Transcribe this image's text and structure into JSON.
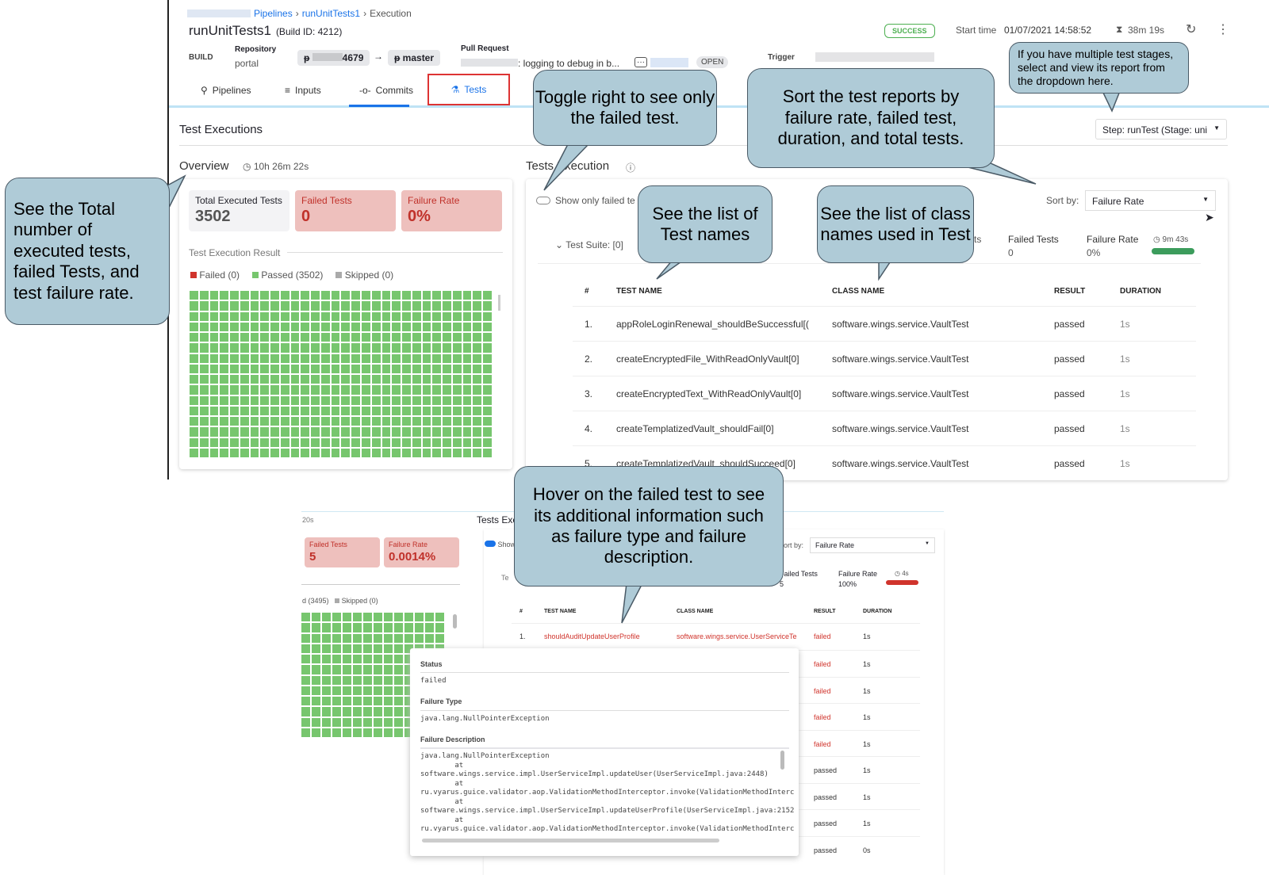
{
  "breadcrumb": {
    "items": [
      "Pipelines",
      "runUnitTests1",
      "Execution"
    ]
  },
  "header": {
    "title": "runUnitTests1",
    "build_id": "(Build ID: 4212)",
    "status": "SUCCESS",
    "start_label": "Start time",
    "start_time": "01/07/2021 14:58:52",
    "duration": "38m 19s",
    "build_label": "BUILD",
    "repo_label": "Repository",
    "repo": "portal",
    "source_branch": "4679",
    "target_branch": "master",
    "pr_label": "Pull Request",
    "pr_title": ": logging to debug in b...",
    "pr_state": "OPEN",
    "trigger_label": "Trigger"
  },
  "tabs": [
    {
      "label": "Pipelines"
    },
    {
      "label": "Inputs"
    },
    {
      "label": "Commits"
    },
    {
      "label": "Tests"
    }
  ],
  "section_title": "Test Executions",
  "step_select": "Step: runTest (Stage: uni",
  "overview": {
    "title": "Overview",
    "duration": "10h 26m 22s",
    "cards": [
      {
        "label": "Total Executed Tests",
        "value": "3502"
      },
      {
        "label": "Failed Tests",
        "value": "0"
      },
      {
        "label": "Failure Rate",
        "value": "0%"
      }
    ],
    "result_title": "Test Execution Result",
    "legend": [
      "Failed (0)",
      "Passed (3502)",
      "Skipped (0)"
    ],
    "colors": {
      "failed": "#d0342c",
      "passed": "#77c66e",
      "skipped": "#aaaaaa"
    }
  },
  "execution": {
    "title": "Tests Execution",
    "toggle_label": "Show only failed te",
    "sort_label": "Sort by:",
    "sort_value": "Failure Rate",
    "suite": "Test Suite: [0]",
    "partial_label": "ts",
    "failed_label": "Failed Tests",
    "failed_value": "0",
    "rate_label": "Failure Rate",
    "rate_value": "0%",
    "time": "9m 43s",
    "columns": [
      "#",
      "TEST NAME",
      "CLASS NAME",
      "RESULT",
      "DURATION"
    ],
    "rows": [
      {
        "n": "1.",
        "name": "appRoleLoginRenewal_shouldBeSuccessful[(",
        "cls": "software.wings.service.VaultTest",
        "result": "passed",
        "dur": "1s"
      },
      {
        "n": "2.",
        "name": "createEncryptedFile_WithReadOnlyVault[0]",
        "cls": "software.wings.service.VaultTest",
        "result": "passed",
        "dur": "1s"
      },
      {
        "n": "3.",
        "name": "createEncryptedText_WithReadOnlyVault[0]",
        "cls": "software.wings.service.VaultTest",
        "result": "passed",
        "dur": "1s"
      },
      {
        "n": "4.",
        "name": "createTemplatizedVault_shouldFail[0]",
        "cls": "software.wings.service.VaultTest",
        "result": "passed",
        "dur": "1s"
      },
      {
        "n": "5.",
        "name": "createTemplatizedVault_shouldSucceed[0]",
        "cls": "software.wings.service.VaultTest",
        "result": "passed",
        "dur": "1s"
      }
    ]
  },
  "second": {
    "duration": "20s",
    "cards": [
      {
        "label": "Failed Tests",
        "value": "5"
      },
      {
        "label": "Failure Rate",
        "value": "0.0014%"
      }
    ],
    "legend": [
      "d (3495)",
      "Skipped (0)"
    ],
    "title": "Tests Exe",
    "toggle": "Show",
    "sort_label": "ort by:",
    "sort_value": "Failure Rate",
    "suite": "Te",
    "failed_label": "Failed Tests",
    "failed_value": "5",
    "rate_label": "Failure Rate",
    "rate_value": "100%",
    "time": "4s",
    "columns": [
      "#",
      "TEST NAME",
      "CLASS NAME",
      "RESULT",
      "DURATION"
    ],
    "first_row": {
      "n": "1.",
      "name": "shouldAuditUpdateUserProfile",
      "cls": "software.wings.service.UserServiceTe",
      "result": "failed",
      "dur": "1s"
    },
    "other_rows": [
      {
        "result": "failed",
        "dur": "1s"
      },
      {
        "result": "failed",
        "dur": "1s"
      },
      {
        "result": "failed",
        "dur": "1s"
      },
      {
        "result": "failed",
        "dur": "1s"
      },
      {
        "result": "passed",
        "dur": "1s"
      },
      {
        "result": "passed",
        "dur": "1s"
      },
      {
        "result": "passed",
        "dur": "1s"
      },
      {
        "result": "passed",
        "dur": "0s"
      }
    ],
    "popup": {
      "status_label": "Status",
      "status": "failed",
      "type_label": "Failure Type",
      "type": "java.lang.NullPointerException",
      "desc_label": "Failure Description",
      "desc": "java.lang.NullPointerException\n        at\nsoftware.wings.service.impl.UserServiceImpl.updateUser(UserServiceImpl.java:2448)\n        at\nru.vyarus.guice.validator.aop.ValidationMethodInterceptor.invoke(ValidationMethodInterc\n        at\nsoftware.wings.service.impl.UserServiceImpl.updateUserProfile(UserServiceImpl.java:2152\n        at\nru.vyarus.guice.validator.aop.ValidationMethodInterceptor.invoke(ValidationMethodInterc"
    }
  },
  "callouts": {
    "overview": "See the Total number of executed tests, failed Tests, and test failure rate.",
    "toggle": "Toggle right to see only the failed test.",
    "sort": "Sort the test reports by failure rate, failed test, duration, and total tests.",
    "stages": "If you have multiple test stages, select and view its report from the dropdown here.",
    "testnames": "See the list of Test names",
    "classnames": "See the list of class names used in Test",
    "hover": "Hover on the failed test to see its additional information such as failure type and failure description."
  }
}
